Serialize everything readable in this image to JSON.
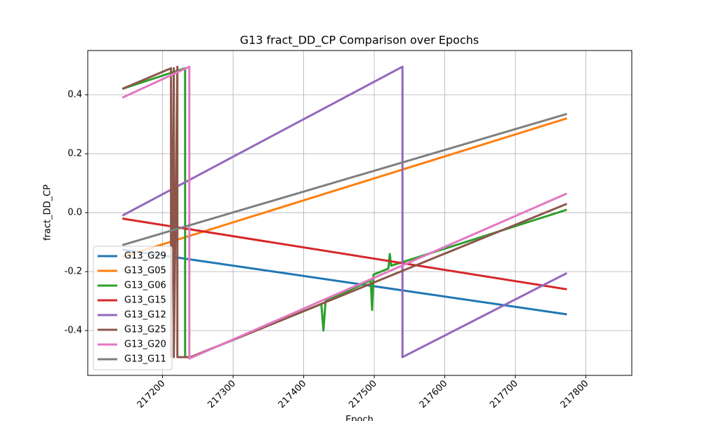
{
  "chart_data": {
    "type": "line",
    "title": "G13 fract_DD_CP Comparison over Epochs",
    "x_label": "Epoch",
    "y_label": "fract_DD_CP",
    "xlim": [
      217094,
      217865
    ],
    "ylim": [
      -0.552,
      0.55
    ],
    "xticks": [
      217200,
      217300,
      217400,
      217500,
      217600,
      217700,
      217800
    ],
    "yticks": [
      -0.4,
      -0.2,
      {
        "value": 0,
        "label": "0.0"
      },
      0.2,
      0.4
    ],
    "grid": true,
    "legend": "lower left",
    "series": [
      {
        "name": "G13_G29",
        "color": "#1f77b4",
        "x": [
          217143,
          217773
        ],
        "values": [
          -0.125,
          -0.345
        ]
      },
      {
        "name": "G13_G05",
        "color": "#ff7f0e",
        "x": [
          217143,
          217773
        ],
        "values": [
          -0.15,
          0.32
        ]
      },
      {
        "name": "G13_G06",
        "color": "#2ca02c",
        "x": [
          217143,
          217232,
          217232,
          217240,
          217425,
          217428,
          217431,
          217495,
          217497,
          217499,
          217520,
          217522,
          217524,
          217773
        ],
        "values": [
          0.42,
          0.49,
          -0.49,
          -0.49,
          -0.31,
          -0.4,
          -0.3,
          -0.23,
          -0.33,
          -0.21,
          -0.19,
          -0.14,
          -0.18,
          0.01
        ]
      },
      {
        "name": "G13_G15",
        "color": "#d62728",
        "x": [
          217143,
          217773
        ],
        "values": [
          -0.02,
          -0.26
        ]
      },
      {
        "name": "G13_G12",
        "color": "#9467bd",
        "x": [
          217143,
          217540,
          217540,
          217773
        ],
        "values": [
          -0.01,
          0.495,
          -0.49,
          -0.205
        ]
      },
      {
        "name": "G13_G25",
        "color": "#8c564b",
        "x": [
          217143,
          217212,
          217212,
          217216,
          217216,
          217221,
          217221,
          217240,
          217773
        ],
        "values": [
          0.42,
          0.49,
          -0.49,
          0.49,
          -0.49,
          0.495,
          -0.49,
          -0.49,
          0.03
        ]
      },
      {
        "name": "G13_G20",
        "color": "#e377c2",
        "x": [
          217143,
          217238,
          217238,
          217773
        ],
        "values": [
          0.39,
          0.495,
          -0.495,
          0.065
        ]
      },
      {
        "name": "G13_G11",
        "color": "#7f7f7f",
        "x": [
          217143,
          217773
        ],
        "values": [
          -0.11,
          0.335
        ]
      }
    ]
  }
}
